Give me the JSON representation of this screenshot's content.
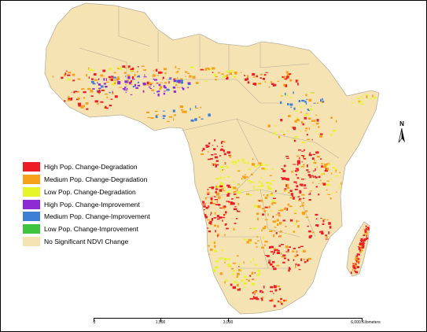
{
  "colors": {
    "land": "#f5e3b3",
    "water": "#ffffff",
    "border": "#b9b09a",
    "high_degradation": "#ee1c25",
    "medium_degradation": "#f7a11a",
    "low_degradation": "#e6f52a",
    "high_improvement": "#8e2bd4",
    "medium_improvement": "#3d7fd6",
    "low_improvement": "#3ec43e"
  },
  "legend": [
    {
      "label": "High Pop. Change-Degradation",
      "color": "#ee1c25"
    },
    {
      "label": "Medium Pop. Change-Degradation",
      "color": "#f7a11a"
    },
    {
      "label": "Low Pop. Change-Degradation",
      "color": "#e6f52a"
    },
    {
      "label": "High Pop. Change-Improvement",
      "color": "#8e2bd4"
    },
    {
      "label": "Medium Pop. Change-Improvement",
      "color": "#3d7fd6"
    },
    {
      "label": "Low Pop. Change-Improvement",
      "color": "#3ec43e"
    },
    {
      "label": "No Significant NDVI Change",
      "color": "#f5e3b3"
    }
  ],
  "north_arrow": {
    "letter": "N"
  },
  "scale_bar": {
    "ticks": [
      "0",
      "1,500",
      "3,000",
      "6,000 Kilometers"
    ]
  }
}
